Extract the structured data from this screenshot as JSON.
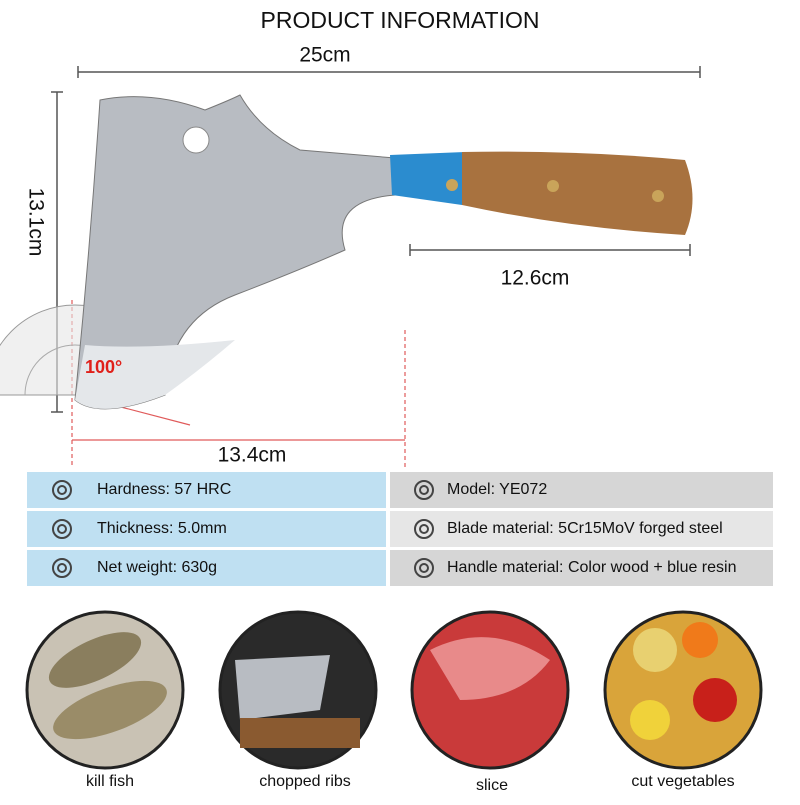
{
  "header": {
    "title": "PRODUCT INFORMATION"
  },
  "dimensions": {
    "length": "25cm",
    "height": "13.1cm",
    "handle": "12.6cm",
    "blade": "13.4cm",
    "angle": "100°"
  },
  "specs": {
    "rows": [
      [
        "Hardness: 57 HRC",
        "Model: YE072"
      ],
      [
        "Thickness: 5.0mm",
        "Blade material: 5Cr15MoV forged steel"
      ],
      [
        "Net weight: 630g",
        "Handle material: Color wood + blue resin"
      ]
    ]
  },
  "uses": [
    "kill fish",
    "chopped ribs",
    "slice",
    "cut vegetables"
  ]
}
